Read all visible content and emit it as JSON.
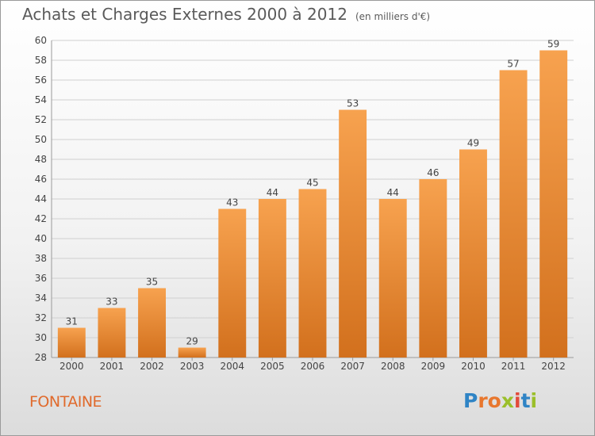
{
  "chart_data": {
    "type": "bar",
    "title": "Achats et Charges Externes 2000 à 2012",
    "subtitle": "(en milliers d'€)",
    "categories": [
      "2000",
      "2001",
      "2002",
      "2003",
      "2004",
      "2005",
      "2006",
      "2007",
      "2008",
      "2009",
      "2010",
      "2011",
      "2012"
    ],
    "values": [
      31,
      33,
      35,
      29,
      43,
      44,
      45,
      53,
      44,
      46,
      49,
      57,
      59
    ],
    "ylim": [
      28,
      60
    ],
    "yticks": [
      28,
      30,
      32,
      34,
      36,
      38,
      40,
      42,
      44,
      46,
      48,
      50,
      52,
      54,
      56,
      58,
      60
    ],
    "grid": true,
    "bar_color_top": "#f7a24f",
    "bar_color_bottom": "#d2701d"
  },
  "commune": "FONTAINE",
  "logo": {
    "text": "Proxiti",
    "letters": [
      {
        "ch": "P",
        "color": "#2f84c5"
      },
      {
        "ch": "r",
        "color": "#e8772e"
      },
      {
        "ch": "o",
        "color": "#e8772e"
      },
      {
        "ch": "x",
        "color": "#9bbf2a"
      },
      {
        "ch": "i",
        "color": "#e24a3b"
      },
      {
        "ch": "t",
        "color": "#2f84c5"
      },
      {
        "ch": "i",
        "color": "#9bbf2a"
      }
    ]
  }
}
